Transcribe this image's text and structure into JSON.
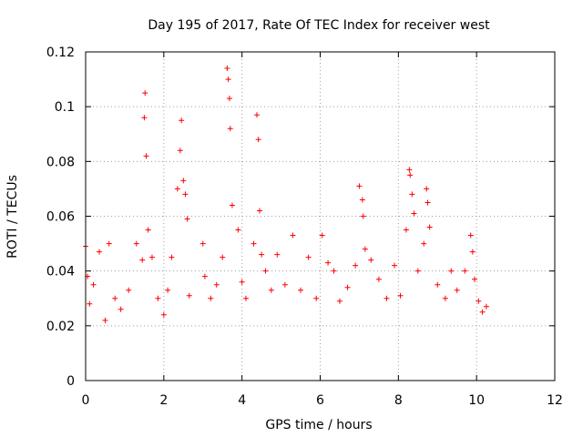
{
  "chart_data": {
    "type": "scatter",
    "title": "Day 195 of 2017, Rate Of TEC Index for receiver west",
    "xlabel": "GPS time / hours",
    "ylabel": "ROTI / TECUs",
    "xlim": [
      0,
      12
    ],
    "ylim": [
      0,
      0.12
    ],
    "x_ticks": [
      0,
      2,
      4,
      6,
      8,
      10,
      12
    ],
    "x_tick_labels": [
      "0",
      "2",
      "4",
      "6",
      "8",
      "10",
      "12"
    ],
    "y_ticks": [
      0,
      0.02,
      0.04,
      0.06,
      0.08,
      0.1,
      0.12
    ],
    "y_tick_labels": [
      "0",
      "0.02",
      "0.04",
      "0.06",
      "0.08",
      "0.1",
      "0.12"
    ],
    "grid": true,
    "marker": "+",
    "color": "#ff0000",
    "data_gaps_hours": [
      [
        2.7,
        2.9
      ]
    ],
    "series": [
      {
        "name": "ROTI",
        "x": [
          0.0,
          0.05,
          0.1,
          0.2,
          0.35,
          0.5,
          0.6,
          0.75,
          0.9,
          1.1,
          1.3,
          1.45,
          1.5,
          1.52,
          1.55,
          1.6,
          1.7,
          1.85,
          2.0,
          2.1,
          2.2,
          2.35,
          2.42,
          2.45,
          2.5,
          2.55,
          2.6,
          2.65,
          3.0,
          3.05,
          3.2,
          3.35,
          3.5,
          3.62,
          3.65,
          3.68,
          3.7,
          3.75,
          3.9,
          4.0,
          4.1,
          4.3,
          4.38,
          4.42,
          4.45,
          4.5,
          4.6,
          4.75,
          4.9,
          5.1,
          5.3,
          5.5,
          5.7,
          5.9,
          6.05,
          6.2,
          6.35,
          6.5,
          6.7,
          6.9,
          7.0,
          7.08,
          7.1,
          7.15,
          7.3,
          7.5,
          7.7,
          7.9,
          8.05,
          8.2,
          8.28,
          8.3,
          8.35,
          8.4,
          8.5,
          8.65,
          8.72,
          8.75,
          8.8,
          9.0,
          9.2,
          9.35,
          9.5,
          9.7,
          9.85,
          9.9,
          9.95,
          10.05,
          10.15,
          10.25
        ],
        "y": [
          0.049,
          0.038,
          0.028,
          0.035,
          0.047,
          0.022,
          0.05,
          0.03,
          0.026,
          0.033,
          0.05,
          0.044,
          0.096,
          0.105,
          0.082,
          0.055,
          0.045,
          0.03,
          0.024,
          0.033,
          0.045,
          0.07,
          0.084,
          0.095,
          0.073,
          0.068,
          0.059,
          0.031,
          0.05,
          0.038,
          0.03,
          0.035,
          0.045,
          0.114,
          0.11,
          0.103,
          0.092,
          0.064,
          0.055,
          0.036,
          0.03,
          0.05,
          0.097,
          0.088,
          0.062,
          0.046,
          0.04,
          0.033,
          0.046,
          0.035,
          0.053,
          0.033,
          0.045,
          0.03,
          0.053,
          0.043,
          0.04,
          0.029,
          0.034,
          0.042,
          0.071,
          0.066,
          0.06,
          0.048,
          0.044,
          0.037,
          0.03,
          0.042,
          0.031,
          0.055,
          0.077,
          0.075,
          0.068,
          0.061,
          0.04,
          0.05,
          0.07,
          0.065,
          0.056,
          0.035,
          0.03,
          0.04,
          0.033,
          0.04,
          0.053,
          0.047,
          0.037,
          0.029,
          0.025,
          0.027
        ]
      }
    ]
  }
}
